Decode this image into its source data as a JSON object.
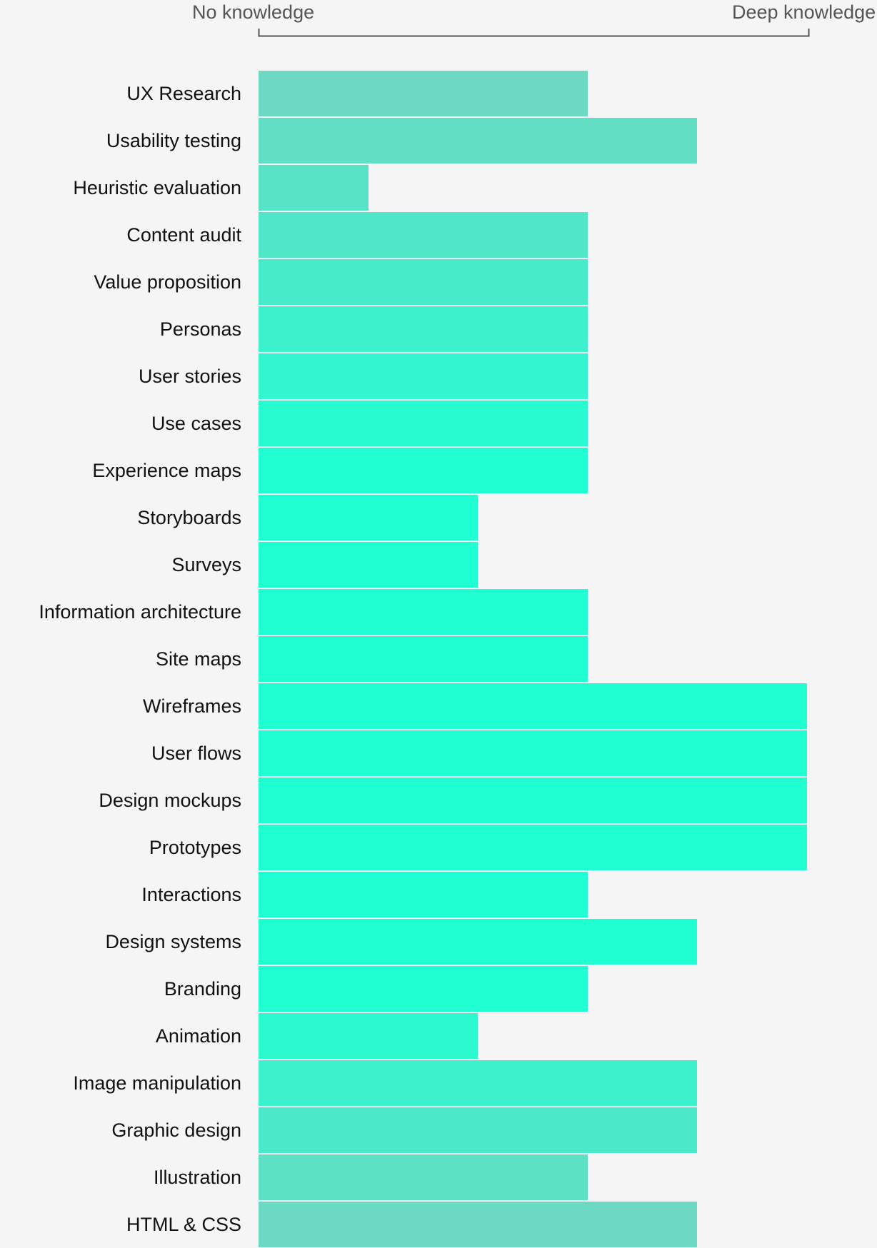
{
  "scale": {
    "min_label": "No knowledge",
    "max_label": "Deep knowledge"
  },
  "chart_data": {
    "type": "bar",
    "orientation": "horizontal",
    "categories": [
      "UX Research",
      "Usability testing",
      "Heuristic evaluation",
      "Content audit",
      "Value proposition",
      "Personas",
      "User stories",
      "Use cases",
      "Experience maps",
      "Storyboards",
      "Surveys",
      "Information architecture",
      "Site maps",
      "Wireframes",
      "User flows",
      "Design mockups",
      "Prototypes",
      "Interactions",
      "Design systems",
      "Branding",
      "Animation",
      "Image manipulation",
      "Graphic design",
      "Illustration",
      "HTML & CSS"
    ],
    "values": [
      3,
      4,
      1,
      3,
      3,
      3,
      3,
      3,
      3,
      2,
      2,
      3,
      3,
      5,
      5,
      5,
      5,
      3,
      4,
      3,
      2,
      4,
      4,
      3,
      4
    ],
    "xlim": [
      0,
      5
    ],
    "grid": false,
    "colors": {
      "bright": "#20ffd2",
      "muted": "#6cd9c2",
      "background": "#f5f5f5",
      "bracket": "#555555"
    }
  }
}
